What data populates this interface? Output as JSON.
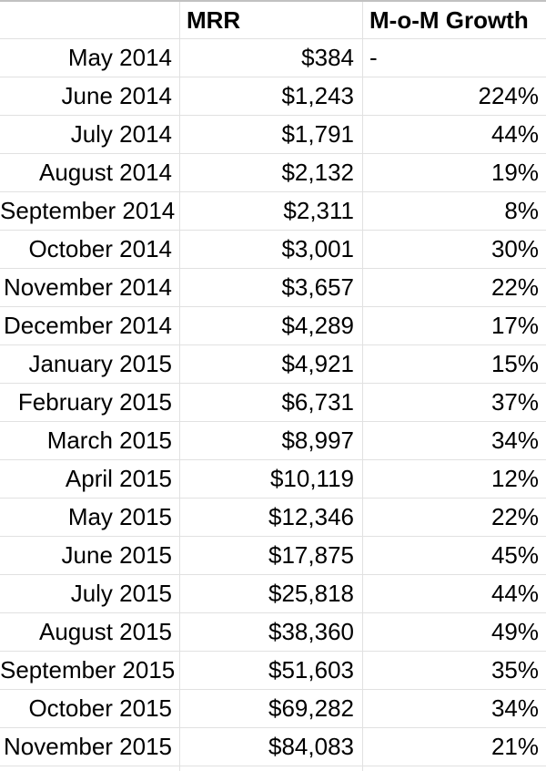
{
  "colors": {
    "background": "#ffffff",
    "gridline": "#e1e1e1",
    "frozen_divider": "#c1c1c1",
    "text": "#000000"
  },
  "table": {
    "columns": [
      {
        "label": ""
      },
      {
        "label": "MRR"
      },
      {
        "label": "M-o-M Growth"
      }
    ],
    "rows": [
      {
        "month": "May 2014",
        "mrr": "$384",
        "growth": "-"
      },
      {
        "month": "June 2014",
        "mrr": "$1,243",
        "growth": "224%"
      },
      {
        "month": "July 2014",
        "mrr": "$1,791",
        "growth": "44%"
      },
      {
        "month": "August 2014",
        "mrr": "$2,132",
        "growth": "19%"
      },
      {
        "month": "September 2014",
        "mrr": "$2,311",
        "growth": "8%"
      },
      {
        "month": "October 2014",
        "mrr": "$3,001",
        "growth": "30%"
      },
      {
        "month": "November 2014",
        "mrr": "$3,657",
        "growth": "22%"
      },
      {
        "month": "December 2014",
        "mrr": "$4,289",
        "growth": "17%"
      },
      {
        "month": "January 2015",
        "mrr": "$4,921",
        "growth": "15%"
      },
      {
        "month": "February 2015",
        "mrr": "$6,731",
        "growth": "37%"
      },
      {
        "month": "March 2015",
        "mrr": "$8,997",
        "growth": "34%"
      },
      {
        "month": "April 2015",
        "mrr": "$10,119",
        "growth": "12%"
      },
      {
        "month": "May 2015",
        "mrr": "$12,346",
        "growth": "22%"
      },
      {
        "month": "June 2015",
        "mrr": "$17,875",
        "growth": "45%"
      },
      {
        "month": "July 2015",
        "mrr": "$25,818",
        "growth": "44%"
      },
      {
        "month": "August 2015",
        "mrr": "$38,360",
        "growth": "49%"
      },
      {
        "month": "September 2015",
        "mrr": "$51,603",
        "growth": "35%"
      },
      {
        "month": "October 2015",
        "mrr": "$69,282",
        "growth": "34%"
      },
      {
        "month": "November 2015",
        "mrr": "$84,083",
        "growth": "21%"
      }
    ]
  }
}
